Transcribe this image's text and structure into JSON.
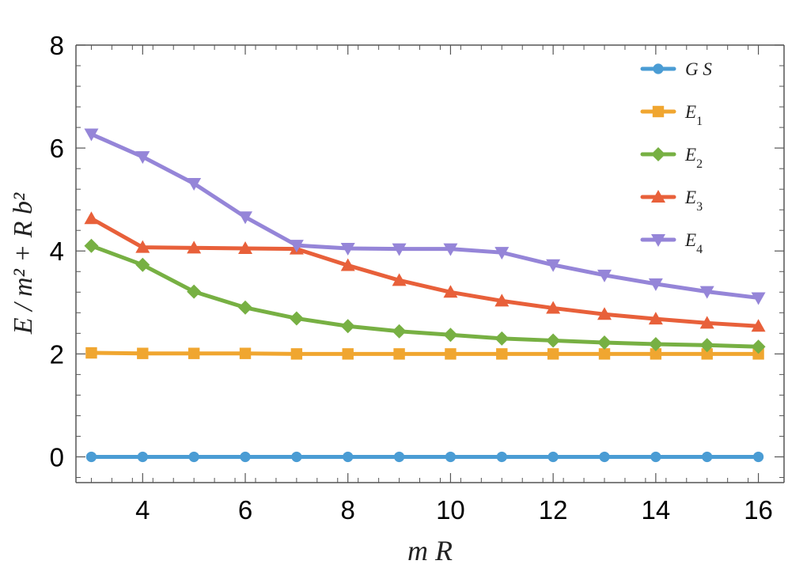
{
  "chart_data": {
    "type": "line",
    "title": "",
    "xlabel": "m R",
    "ylabel": "E / m² + R b²",
    "xlim": [
      2.7,
      16.5
    ],
    "ylim": [
      -0.5,
      8
    ],
    "xticks": [
      4,
      6,
      8,
      10,
      12,
      14,
      16
    ],
    "xtick_labels": [
      "4",
      "6",
      "8",
      "10",
      "12",
      "14",
      "16"
    ],
    "yticks": [
      0,
      2,
      4,
      6,
      8
    ],
    "ytick_labels": [
      "0",
      "2",
      "4",
      "6",
      "8"
    ],
    "grid": false,
    "legend_position": "top-right",
    "x": [
      3,
      4,
      5,
      6,
      7,
      8,
      9,
      10,
      11,
      12,
      13,
      14,
      15,
      16
    ],
    "series": [
      {
        "name": "G S",
        "name_parts": {
          "base": "G S",
          "sub": ""
        },
        "color": "#4a9cd4",
        "marker": "circle",
        "values": [
          0,
          0,
          0,
          0,
          0,
          0,
          0,
          0,
          0,
          0,
          0,
          0,
          0,
          0
        ]
      },
      {
        "name": "E1",
        "name_parts": {
          "base": "E",
          "sub": "1"
        },
        "color": "#f0a630",
        "marker": "square",
        "values": [
          2.02,
          2.01,
          2.01,
          2.01,
          2.0,
          2.0,
          2.0,
          2.0,
          2.0,
          2.0,
          2.0,
          2.0,
          2.0,
          2.0
        ]
      },
      {
        "name": "E2",
        "name_parts": {
          "base": "E",
          "sub": "2"
        },
        "color": "#77b043",
        "marker": "diamond",
        "values": [
          4.1,
          3.73,
          3.21,
          2.9,
          2.69,
          2.54,
          2.44,
          2.37,
          2.3,
          2.26,
          2.22,
          2.19,
          2.17,
          2.14
        ]
      },
      {
        "name": "E3",
        "name_parts": {
          "base": "E",
          "sub": "3"
        },
        "color": "#e8603a",
        "marker": "triangle-up",
        "values": [
          4.63,
          4.07,
          4.06,
          4.05,
          4.04,
          3.72,
          3.43,
          3.2,
          3.03,
          2.89,
          2.77,
          2.68,
          2.6,
          2.54
        ]
      },
      {
        "name": "E4",
        "name_parts": {
          "base": "E",
          "sub": "4"
        },
        "color": "#9585d8",
        "marker": "triangle-down",
        "values": [
          6.27,
          5.83,
          5.31,
          4.66,
          4.11,
          4.05,
          4.04,
          4.04,
          3.97,
          3.73,
          3.53,
          3.36,
          3.21,
          3.09
        ]
      }
    ]
  }
}
